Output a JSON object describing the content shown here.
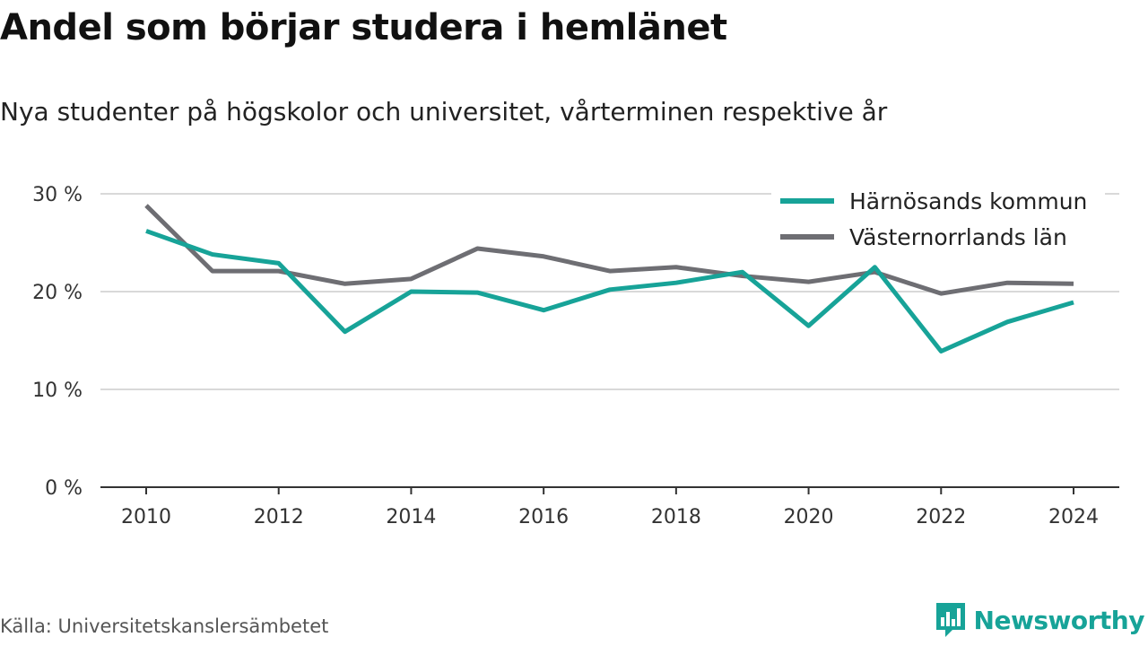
{
  "header": {
    "title": "Andel som börjar studera i hemlänet",
    "subtitle": "Nya studenter på högskolor och universitet, vårterminen respektive år"
  },
  "footer": {
    "source": "Källa: Universitetskanslersämbetet",
    "brand": "Newsworthy",
    "brand_color": "#17a398",
    "brand_icon": "bar-chart-speech-bubble-icon"
  },
  "chart_data": {
    "type": "line",
    "x": [
      2010,
      2011,
      2012,
      2013,
      2014,
      2015,
      2016,
      2017,
      2018,
      2019,
      2020,
      2021,
      2022,
      2023,
      2024
    ],
    "x_ticks": [
      "2010",
      "2012",
      "2014",
      "2016",
      "2018",
      "2020",
      "2022",
      "2024"
    ],
    "y_ticks": [
      {
        "value": 0,
        "label": "0 %"
      },
      {
        "value": 10,
        "label": "10 %"
      },
      {
        "value": 20,
        "label": "20 %"
      },
      {
        "value": 30,
        "label": "30 %"
      }
    ],
    "ylim": [
      0,
      30
    ],
    "grid": true,
    "legend_position": "top-right",
    "series": [
      {
        "name": "Härnösands kommun",
        "color": "#17a398",
        "values": [
          26.2,
          23.8,
          22.9,
          15.9,
          20.0,
          19.9,
          18.1,
          20.2,
          20.9,
          22.0,
          16.5,
          22.5,
          13.9,
          16.9,
          18.9
        ]
      },
      {
        "name": "Västernorrlands län",
        "color": "#6e6e73",
        "values": [
          28.8,
          22.1,
          22.1,
          20.8,
          21.3,
          24.4,
          23.6,
          22.1,
          22.5,
          21.6,
          21.0,
          22.0,
          19.8,
          20.9,
          20.8
        ]
      }
    ]
  }
}
